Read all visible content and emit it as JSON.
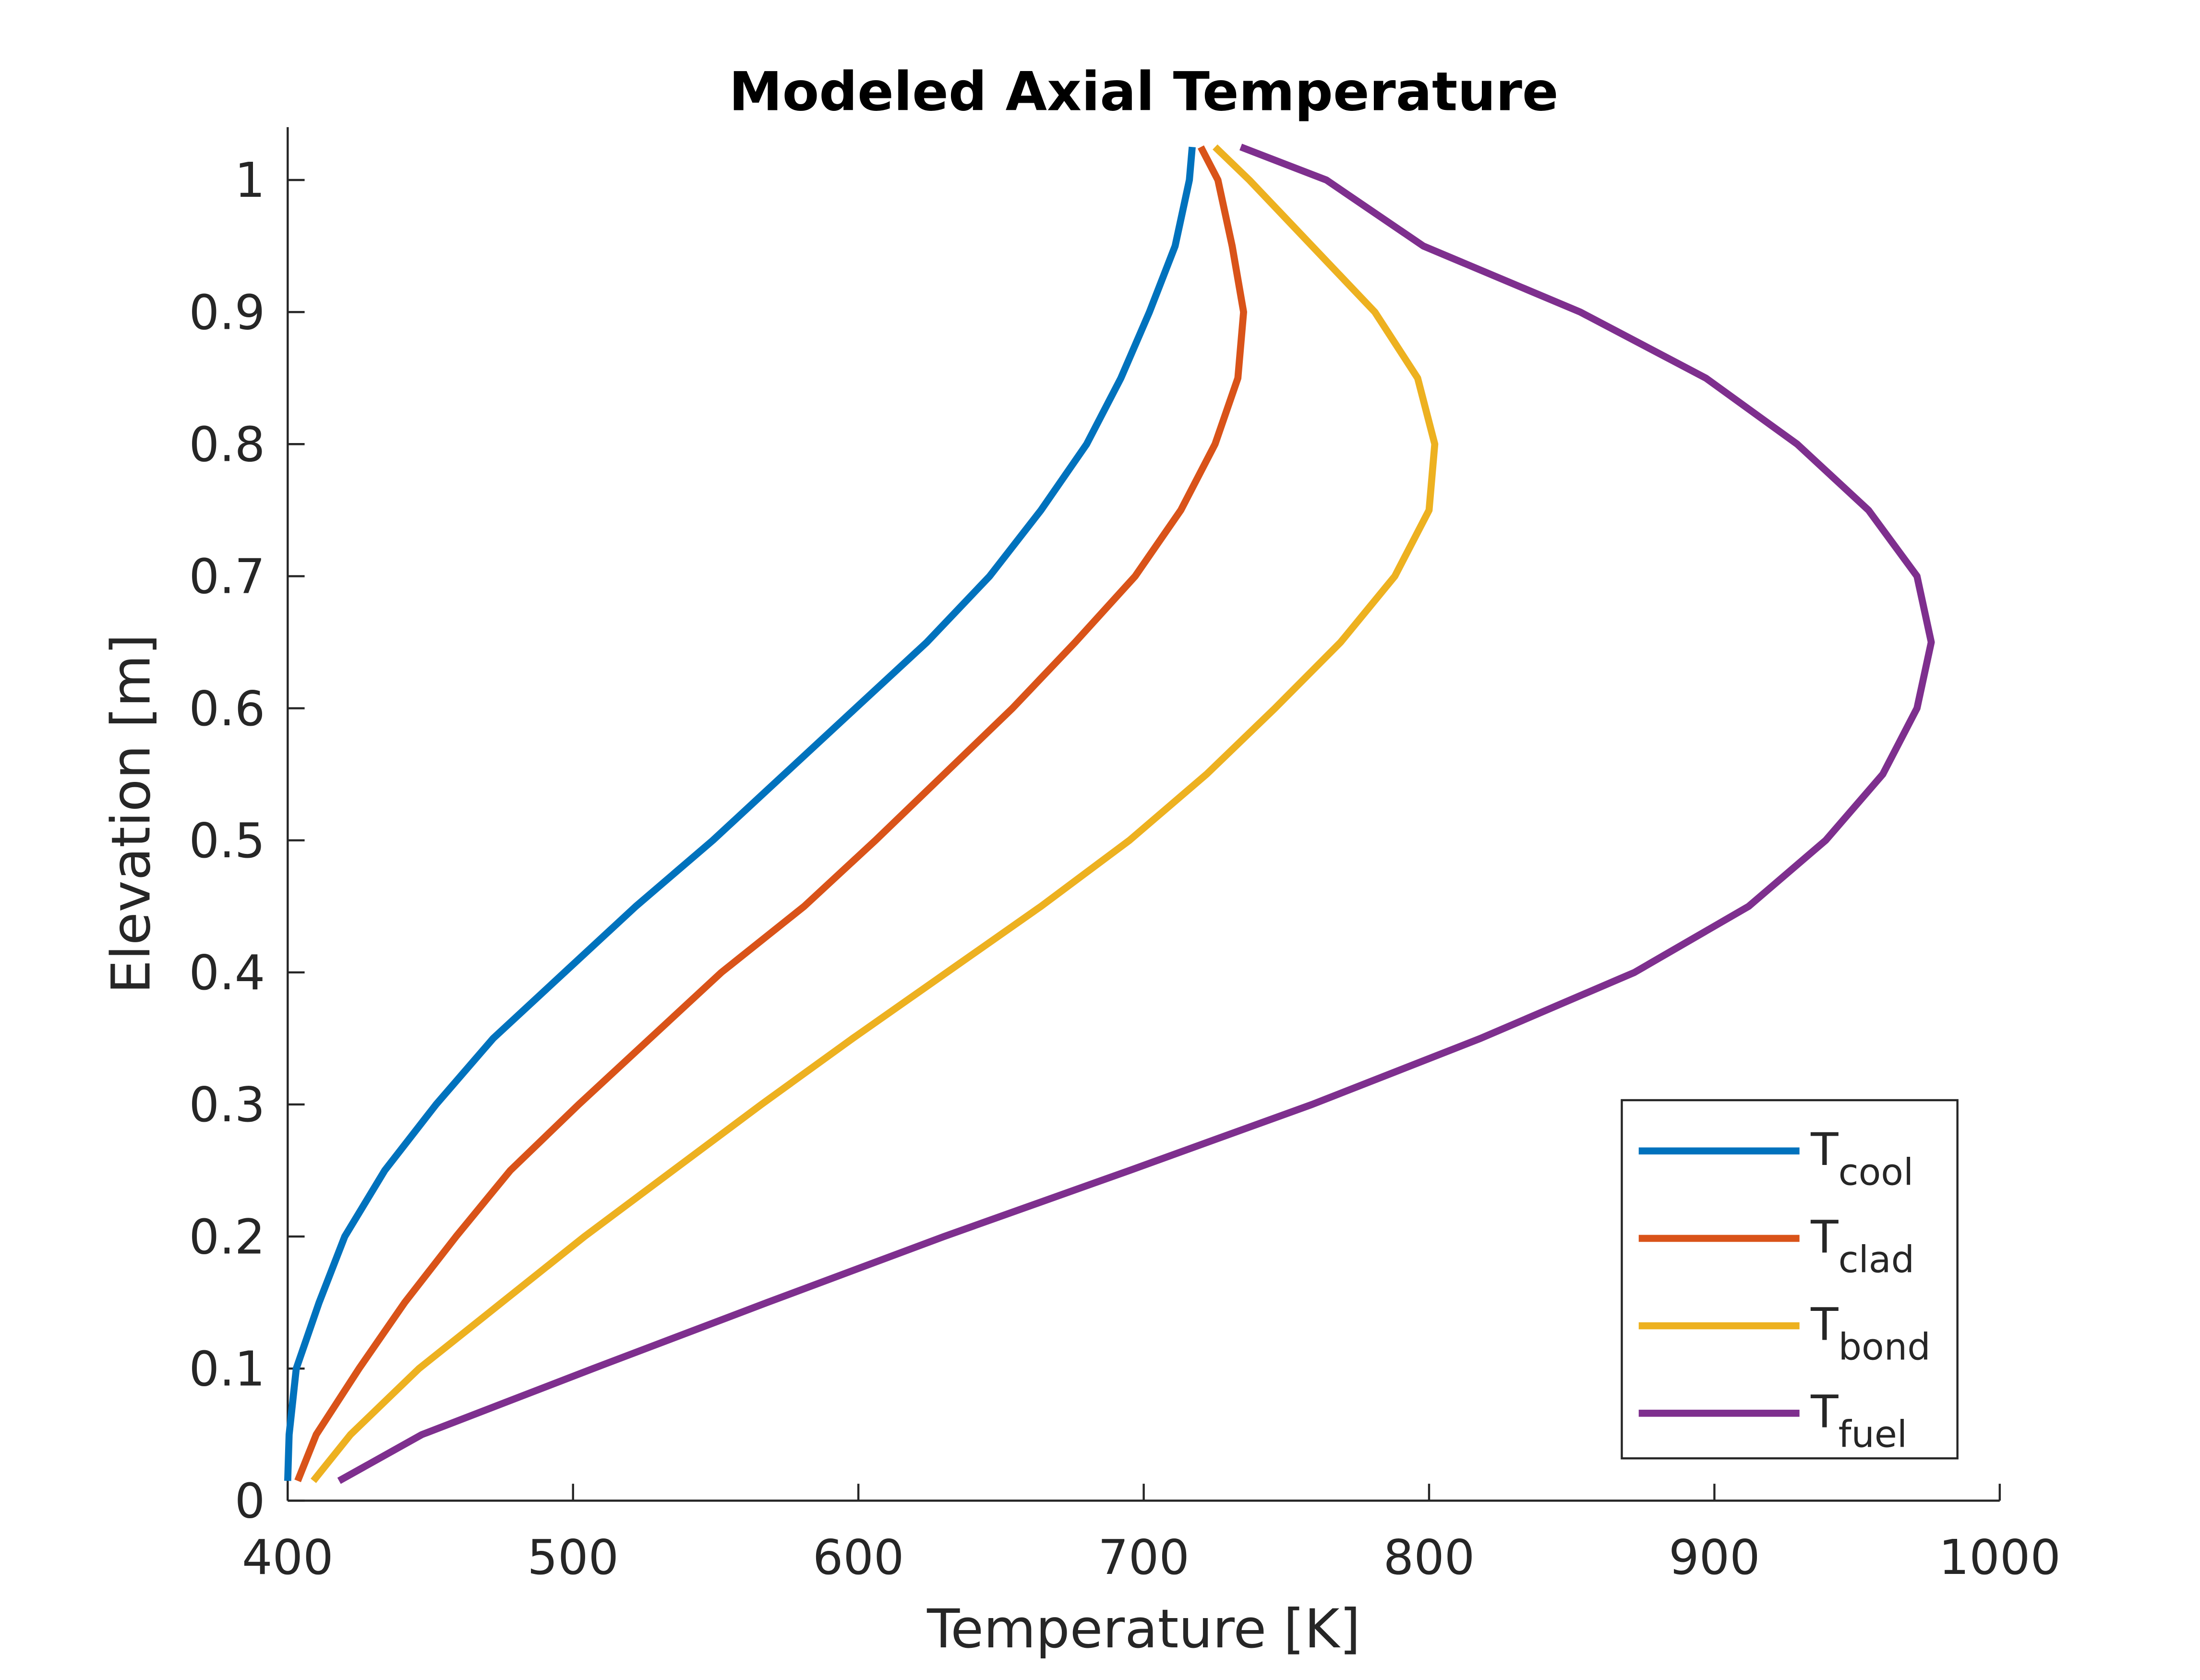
{
  "chart_data": {
    "type": "line",
    "title": "Modeled Axial Temperature",
    "x_label": "Temperature [K]",
    "y_label": "Elevation [m]",
    "y": [
      0.015,
      0.05,
      0.1,
      0.15,
      0.2,
      0.25,
      0.3,
      0.35,
      0.4,
      0.45,
      0.5,
      0.55,
      0.6,
      0.65,
      0.7,
      0.75,
      0.8,
      0.85,
      0.9,
      0.95,
      1.0,
      1.025
    ],
    "series": [
      {
        "name": "Tcool",
        "color": "#0072bd",
        "x": [
          400,
          400.5,
          403,
          411,
          420,
          434,
          452,
          472,
          497,
          522,
          549,
          574,
          599,
          624,
          646,
          664,
          680,
          692,
          702,
          711,
          716,
          717
        ]
      },
      {
        "name": "Tclad",
        "color": "#d95319",
        "x": [
          403.5,
          410,
          425,
          441,
          459,
          478,
          502,
          527,
          552,
          581,
          606,
          630,
          654,
          676,
          697,
          713,
          725,
          733,
          735,
          731,
          726,
          720
        ]
      },
      {
        "name": "Tbond",
        "color": "#edb120",
        "x": [
          409,
          422,
          446,
          475,
          504,
          535,
          566,
          598,
          631,
          664,
          695,
          722,
          746,
          769,
          788,
          800,
          802,
          796,
          781,
          759,
          737,
          725
        ]
      },
      {
        "name": "Tfuel",
        "color": "#7e2f8e",
        "x": [
          418,
          447,
          507,
          568,
          630,
          695,
          759,
          818,
          872,
          912,
          939,
          959,
          971,
          976,
          971,
          954,
          929,
          897,
          853,
          798,
          764,
          734
        ]
      }
    ],
    "xlim": [
      400,
      1000
    ],
    "ylim": [
      0,
      1.04
    ],
    "xticks": [
      400,
      500,
      600,
      700,
      800,
      900,
      1000
    ],
    "yticks": [
      0,
      0.1,
      0.2,
      0.3,
      0.4,
      0.5,
      0.6,
      0.7,
      0.8,
      0.9,
      1
    ],
    "grid": false,
    "legend": "lower right"
  }
}
